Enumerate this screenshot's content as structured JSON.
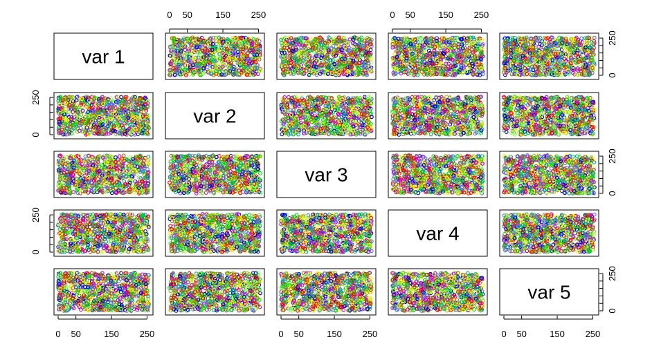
{
  "chart_data": {
    "type": "scatter",
    "layout": "pairs-matrix",
    "variables": [
      "var 1",
      "var 2",
      "var 3",
      "var 4",
      "var 5"
    ],
    "axis_range": [
      0,
      255
    ],
    "tick_values": [
      0,
      50,
      150,
      250
    ],
    "tick_labels": [
      "0",
      "50",
      "150",
      "250"
    ],
    "top_axes_on_columns": [
      2,
      4
    ],
    "bottom_axes_on_columns": [
      1,
      3,
      5
    ],
    "left_axes_on_rows": [
      2,
      4
    ],
    "right_axes_on_rows": [
      1,
      3,
      5
    ],
    "points_per_panel": 900,
    "point_colors": [
      "#ff0000",
      "#00dd00",
      "#0000cc",
      "#88cc00",
      "#cc00cc",
      "#ffee00",
      "#00aa88",
      "#aa6600",
      "#6666ff",
      "#99ff66"
    ],
    "grid": false,
    "legend": "none"
  }
}
